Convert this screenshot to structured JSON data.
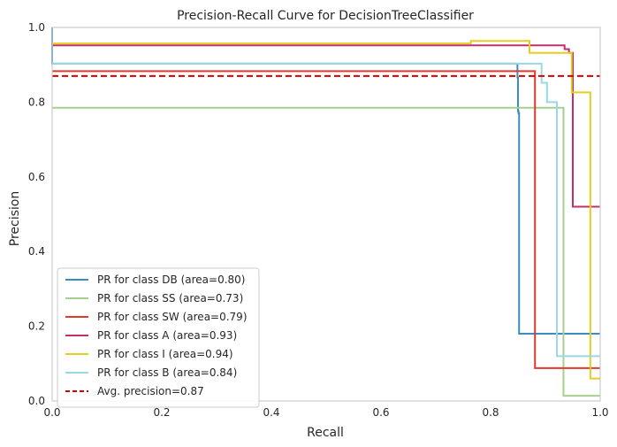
{
  "chart_data": {
    "type": "line",
    "title": "Precision-Recall Curve for DecisionTreeClassifier",
    "xlabel": "Recall",
    "ylabel": "Precision",
    "xlim": [
      0,
      1
    ],
    "ylim": [
      0,
      1
    ],
    "xticks": [
      "0.0",
      "0.2",
      "0.4",
      "0.6",
      "0.8",
      "1.0"
    ],
    "yticks": [
      "0.0",
      "0.2",
      "0.4",
      "0.6",
      "0.8",
      "1.0"
    ],
    "grid": false,
    "legend_position": "lower-left",
    "series": [
      {
        "name": "PR for class DB (area=0.80)",
        "color": "#3a8dc4",
        "points": [
          [
            0,
            1.0
          ],
          [
            0,
            0.903
          ],
          [
            0.849,
            0.903
          ],
          [
            0.849,
            0.866
          ],
          [
            0.85,
            0.866
          ],
          [
            0.85,
            0.776
          ],
          [
            0.851,
            0.776
          ],
          [
            0.851,
            0.77
          ],
          [
            0.852,
            0.77
          ],
          [
            0.852,
            0.18
          ],
          [
            1.0,
            0.18
          ]
        ]
      },
      {
        "name": "PR for class SS (area=0.73)",
        "color": "#a6d08c",
        "points": [
          [
            0,
            0.785
          ],
          [
            0.933,
            0.785
          ],
          [
            0.933,
            0.014
          ],
          [
            1.0,
            0.014
          ]
        ]
      },
      {
        "name": "PR for class SW (area=0.79)",
        "color": "#e03a2c",
        "points": [
          [
            0,
            0.883
          ],
          [
            0.881,
            0.883
          ],
          [
            0.881,
            0.088
          ],
          [
            1.0,
            0.088
          ]
        ]
      },
      {
        "name": "PR for class A (area=0.93)",
        "color": "#c0306e",
        "points": [
          [
            0,
            0.952
          ],
          [
            0.935,
            0.952
          ],
          [
            0.935,
            0.942
          ],
          [
            0.943,
            0.942
          ],
          [
            0.943,
            0.932
          ],
          [
            0.95,
            0.932
          ],
          [
            0.95,
            0.52
          ],
          [
            1.0,
            0.52
          ]
        ]
      },
      {
        "name": "PR for class I (area=0.94)",
        "color": "#e8cc26",
        "points": [
          [
            0,
            0.957
          ],
          [
            0.764,
            0.957
          ],
          [
            0.764,
            0.964
          ],
          [
            0.871,
            0.964
          ],
          [
            0.871,
            0.932
          ],
          [
            0.948,
            0.932
          ],
          [
            0.948,
            0.826
          ],
          [
            0.982,
            0.826
          ],
          [
            0.982,
            0.06
          ],
          [
            1.0,
            0.06
          ]
        ]
      },
      {
        "name": "PR for class B (area=0.84)",
        "color": "#9ad8e6",
        "points": [
          [
            0,
            0.903
          ],
          [
            0.893,
            0.903
          ],
          [
            0.893,
            0.852
          ],
          [
            0.903,
            0.852
          ],
          [
            0.903,
            0.8
          ],
          [
            0.921,
            0.8
          ],
          [
            0.921,
            0.12
          ],
          [
            1.0,
            0.12
          ]
        ]
      }
    ],
    "average": {
      "name": "Avg. precision=0.87",
      "value": 0.87,
      "color": "#d40000"
    }
  }
}
